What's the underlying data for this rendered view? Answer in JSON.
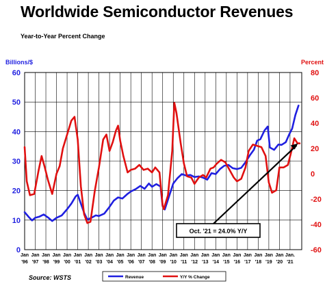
{
  "title": "Worldwide Semiconductor Revenues",
  "subtitle": "Year-to-Year Percent Change",
  "source": "Source: WSTS",
  "chart_data": {
    "type": "line",
    "title": "Worldwide Semiconductor Revenues",
    "subtitle": "Year-to-Year Percent Change",
    "y_left": {
      "label": "Billions/$",
      "range": [
        0,
        60
      ],
      "ticks": [
        0,
        10,
        20,
        30,
        40,
        50,
        60
      ],
      "color": "#1f1fe0"
    },
    "y_right": {
      "label": "Percent",
      "range": [
        -60,
        80
      ],
      "ticks": [
        -60,
        -40,
        -20,
        0,
        20,
        40,
        60,
        80
      ],
      "color": "#e01010"
    },
    "x_range": [
      1996,
      2022.1
    ],
    "x_ticks": [
      {
        "top": "Jan",
        "bottom": "'96"
      },
      {
        "top": "Jan",
        "bottom": "'97"
      },
      {
        "top": "Jan",
        "bottom": "'98"
      },
      {
        "top": "Jan",
        "bottom": "'99"
      },
      {
        "top": "Jan",
        "bottom": "'00"
      },
      {
        "top": "Jan",
        "bottom": "'01"
      },
      {
        "top": "Jan",
        "bottom": "'02"
      },
      {
        "top": "Jan",
        "bottom": "'03"
      },
      {
        "top": "Jan",
        "bottom": "'04"
      },
      {
        "top": "Jan",
        "bottom": "'05"
      },
      {
        "top": "Jan",
        "bottom": "'06"
      },
      {
        "top": "Jan",
        "bottom": "'07"
      },
      {
        "top": "Jan",
        "bottom": "'08"
      },
      {
        "top": "Jan",
        "bottom": "'09"
      },
      {
        "top": "Jan",
        "bottom": "'10"
      },
      {
        "top": "Jan",
        "bottom": "'11"
      },
      {
        "top": "Jan",
        "bottom": "'12"
      },
      {
        "top": "Jan",
        "bottom": "'13"
      },
      {
        "top": "Jan",
        "bottom": "'14"
      },
      {
        "top": "Jan",
        "bottom": "'15"
      },
      {
        "top": "Jan",
        "bottom": "'16"
      },
      {
        "top": "Jan",
        "bottom": "'17"
      },
      {
        "top": "Jan",
        "bottom": "'18"
      },
      {
        "top": "Jan",
        "bottom": "'19"
      },
      {
        "top": "Jan",
        "bottom": "'20"
      },
      {
        "top": "Jan.",
        "bottom": "'21"
      }
    ],
    "grid": true,
    "legend_position": "bottom",
    "series": [
      {
        "name": "Revenue",
        "axis": "left",
        "color": "#1f1fe0",
        "points": [
          [
            1996.0,
            12.7
          ],
          [
            1996.4,
            11.0
          ],
          [
            1996.7,
            9.9
          ],
          [
            1997.0,
            10.8
          ],
          [
            1997.4,
            11.2
          ],
          [
            1997.8,
            11.9
          ],
          [
            1998.2,
            10.9
          ],
          [
            1998.6,
            9.7
          ],
          [
            1999.0,
            10.8
          ],
          [
            1999.5,
            11.6
          ],
          [
            2000.0,
            13.7
          ],
          [
            2000.4,
            15.6
          ],
          [
            2000.8,
            18.0
          ],
          [
            2001.0,
            18.6
          ],
          [
            2001.3,
            15.6
          ],
          [
            2001.6,
            12.5
          ],
          [
            2001.9,
            10.2
          ],
          [
            2002.3,
            10.8
          ],
          [
            2002.7,
            11.6
          ],
          [
            2003.0,
            11.4
          ],
          [
            2003.5,
            12.2
          ],
          [
            2004.0,
            14.5
          ],
          [
            2004.4,
            16.6
          ],
          [
            2004.8,
            17.7
          ],
          [
            2005.2,
            17.3
          ],
          [
            2005.7,
            18.9
          ],
          [
            2006.0,
            19.7
          ],
          [
            2006.5,
            20.6
          ],
          [
            2006.9,
            21.6
          ],
          [
            2007.3,
            20.6
          ],
          [
            2007.7,
            22.4
          ],
          [
            2008.0,
            21.3
          ],
          [
            2008.4,
            22.2
          ],
          [
            2008.8,
            21.4
          ],
          [
            2009.0,
            14.7
          ],
          [
            2009.2,
            13.6
          ],
          [
            2009.6,
            18.0
          ],
          [
            2010.0,
            22.4
          ],
          [
            2010.4,
            24.2
          ],
          [
            2010.8,
            25.6
          ],
          [
            2011.2,
            25.1
          ],
          [
            2011.6,
            25.3
          ],
          [
            2012.0,
            24.6
          ],
          [
            2012.4,
            24.8
          ],
          [
            2012.8,
            24.4
          ],
          [
            2013.2,
            23.7
          ],
          [
            2013.6,
            25.9
          ],
          [
            2014.0,
            25.6
          ],
          [
            2014.4,
            27.3
          ],
          [
            2014.8,
            28.4
          ],
          [
            2015.2,
            28.7
          ],
          [
            2015.6,
            27.6
          ],
          [
            2016.0,
            27.3
          ],
          [
            2016.4,
            27.7
          ],
          [
            2016.8,
            29.6
          ],
          [
            2017.2,
            31.9
          ],
          [
            2017.6,
            33.9
          ],
          [
            2017.9,
            36.9
          ],
          [
            2018.2,
            37.4
          ],
          [
            2018.6,
            40.4
          ],
          [
            2018.9,
            41.7
          ],
          [
            2019.1,
            34.6
          ],
          [
            2019.5,
            33.8
          ],
          [
            2019.9,
            35.6
          ],
          [
            2020.2,
            35.5
          ],
          [
            2020.6,
            36.4
          ],
          [
            2020.9,
            38.9
          ],
          [
            2021.2,
            41.0
          ],
          [
            2021.5,
            45.6
          ],
          [
            2021.8,
            48.8
          ]
        ]
      },
      {
        "name": "Y/Y % Change",
        "axis": "right",
        "color": "#e01010",
        "points": [
          [
            1996.0,
            21
          ],
          [
            1996.2,
            -6
          ],
          [
            1996.5,
            -17
          ],
          [
            1996.9,
            -16
          ],
          [
            1997.3,
            2
          ],
          [
            1997.6,
            14
          ],
          [
            1997.9,
            5
          ],
          [
            1998.2,
            -5
          ],
          [
            1998.6,
            -16
          ],
          [
            1999.0,
            0
          ],
          [
            1999.3,
            6
          ],
          [
            1999.6,
            20
          ],
          [
            2000.0,
            31
          ],
          [
            2000.4,
            42
          ],
          [
            2000.7,
            45
          ],
          [
            2001.0,
            27
          ],
          [
            2001.3,
            -10
          ],
          [
            2001.6,
            -32
          ],
          [
            2001.9,
            -39
          ],
          [
            2002.2,
            -38
          ],
          [
            2002.6,
            -14
          ],
          [
            2003.0,
            5
          ],
          [
            2003.4,
            27
          ],
          [
            2003.7,
            31
          ],
          [
            2004.0,
            18
          ],
          [
            2004.3,
            25
          ],
          [
            2004.6,
            34
          ],
          [
            2004.8,
            38
          ],
          [
            2005.0,
            26
          ],
          [
            2005.3,
            14
          ],
          [
            2005.7,
            1
          ],
          [
            2006.0,
            3
          ],
          [
            2006.4,
            4
          ],
          [
            2006.8,
            7
          ],
          [
            2007.2,
            3
          ],
          [
            2007.6,
            4
          ],
          [
            2008.0,
            1
          ],
          [
            2008.3,
            5
          ],
          [
            2008.7,
            1
          ],
          [
            2009.0,
            -25
          ],
          [
            2009.1,
            -28
          ],
          [
            2009.5,
            -17
          ],
          [
            2009.9,
            18
          ],
          [
            2010.1,
            56
          ],
          [
            2010.3,
            48
          ],
          [
            2010.7,
            24
          ],
          [
            2011.0,
            8
          ],
          [
            2011.3,
            -2
          ],
          [
            2011.7,
            -3
          ],
          [
            2012.0,
            -8
          ],
          [
            2012.4,
            -3
          ],
          [
            2012.8,
            -1
          ],
          [
            2013.1,
            -3
          ],
          [
            2013.5,
            4
          ],
          [
            2013.8,
            5
          ],
          [
            2014.1,
            8
          ],
          [
            2014.5,
            11
          ],
          [
            2014.9,
            9
          ],
          [
            2015.3,
            3
          ],
          [
            2015.7,
            -3
          ],
          [
            2016.0,
            -6
          ],
          [
            2016.4,
            -4
          ],
          [
            2016.8,
            5
          ],
          [
            2017.1,
            18
          ],
          [
            2017.5,
            23
          ],
          [
            2017.9,
            22
          ],
          [
            2018.3,
            21
          ],
          [
            2018.7,
            14
          ],
          [
            2019.0,
            -7
          ],
          [
            2019.3,
            -15
          ],
          [
            2019.7,
            -13
          ],
          [
            2020.0,
            5
          ],
          [
            2020.4,
            5
          ],
          [
            2020.8,
            7
          ],
          [
            2021.1,
            17
          ],
          [
            2021.4,
            28
          ],
          [
            2021.7,
            24
          ],
          [
            2021.9,
            24
          ]
        ]
      }
    ],
    "annotations": [
      {
        "text": "Oct. '21 = 24.0% Y/Y",
        "x": 2021.75,
        "y": 24,
        "axis": "right"
      }
    ],
    "legend": [
      {
        "label": "Revenue",
        "color": "#1f1fe0"
      },
      {
        "label": "Y/Y % Change",
        "color": "#e01010"
      }
    ]
  }
}
